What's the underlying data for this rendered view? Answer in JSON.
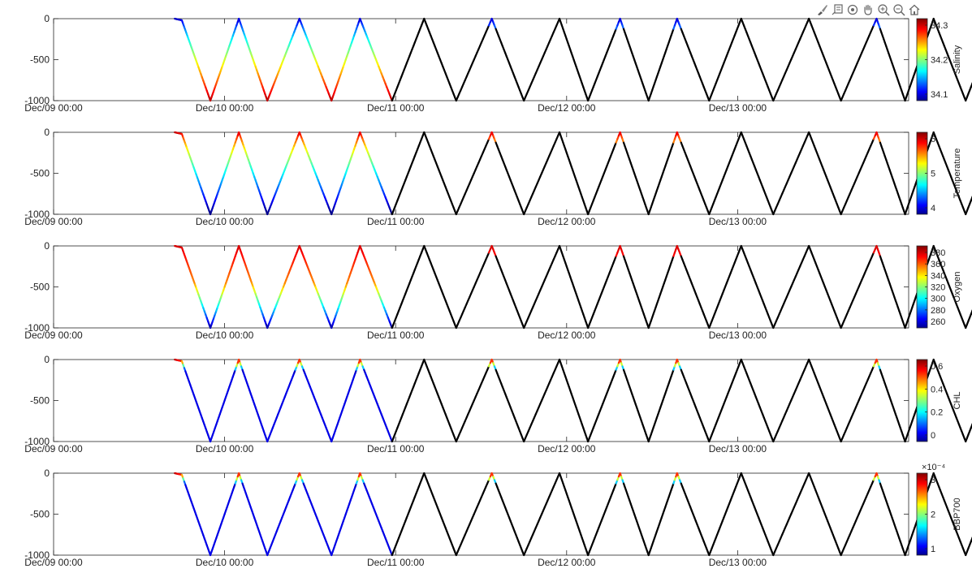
{
  "toolbar": {
    "icons": [
      "brush-icon",
      "data-tips-icon",
      "rotate-icon",
      "pan-icon",
      "zoom-in-icon",
      "zoom-out-icon",
      "home-icon"
    ]
  },
  "chart_data": [
    {
      "type": "line",
      "title": "",
      "colorbar_label": "Salinity",
      "colorbar_ticks": [
        "34.3",
        "34.2",
        "34.1"
      ],
      "yticks": [
        "0",
        "-500",
        "-1000"
      ],
      "xticks": [
        "Dec/09 00:00",
        "Dec/10 00:00",
        "Dec/11 00:00",
        "Dec/12 00:00",
        "Dec/13 00:00"
      ],
      "ylim": [
        -1000,
        0
      ]
    },
    {
      "type": "line",
      "title": "",
      "colorbar_label": "Temperature",
      "colorbar_ticks": [
        "6",
        "5",
        "4"
      ],
      "yticks": [
        "0",
        "-500",
        "-1000"
      ],
      "xticks": [
        "Dec/09 00:00",
        "Dec/10 00:00",
        "Dec/11 00:00",
        "Dec/12 00:00",
        "Dec/13 00:00"
      ],
      "ylim": [
        -1000,
        0
      ]
    },
    {
      "type": "line",
      "title": "",
      "colorbar_label": "Oxygen",
      "colorbar_ticks": [
        "380",
        "360",
        "340",
        "320",
        "300",
        "280",
        "260"
      ],
      "yticks": [
        "0",
        "-500",
        "-1000"
      ],
      "xticks": [
        "Dec/09 00:00",
        "Dec/10 00:00",
        "Dec/11 00:00",
        "Dec/12 00:00",
        "Dec/13 00:00"
      ],
      "ylim": [
        -1000,
        0
      ]
    },
    {
      "type": "line",
      "title": "",
      "colorbar_label": "CHL",
      "colorbar_ticks": [
        "0.6",
        "0.4",
        "0.2",
        "0"
      ],
      "yticks": [
        "0",
        "-500",
        "-1000"
      ],
      "xticks": [
        "Dec/09 00:00",
        "Dec/10 00:00",
        "Dec/11 00:00",
        "Dec/12 00:00",
        "Dec/13 00:00"
      ],
      "ylim": [
        -1000,
        0
      ]
    },
    {
      "type": "line",
      "title": "",
      "colorbar_label": "BBP700",
      "colorbar_ticks": [
        "3",
        "2",
        "1"
      ],
      "colorbar_exponent": "×10⁻⁴",
      "yticks": [
        "0",
        "-500",
        "-1000"
      ],
      "xticks": [
        "Dec/09 00:00",
        "Dec/10 00:00",
        "Dec/11 00:00",
        "Dec/12 00:00",
        "Dec/13 00:00"
      ],
      "ylim": [
        -1000,
        0
      ]
    }
  ],
  "profile": {
    "x_start": "Dec/09 00:00",
    "x_end": "Dec/14 00:00",
    "vertices": [
      [
        "Dec/09 17:00",
        0
      ],
      [
        "Dec/09 18:00",
        -20
      ],
      [
        "Dec/09 22:00",
        -1000
      ],
      [
        "Dec/10 02:00",
        0
      ],
      [
        "Dec/10 06:00",
        -1000
      ],
      [
        "Dec/10 10:30",
        0
      ],
      [
        "Dec/10 15:00",
        -1000
      ],
      [
        "Dec/10 19:00",
        0
      ],
      [
        "Dec/10 23:30",
        -1000
      ],
      [
        "Dec/11 04:00",
        0
      ],
      [
        "Dec/11 08:30",
        -1000
      ],
      [
        "Dec/11 13:30",
        0
      ],
      [
        "Dec/11 18:00",
        -1000
      ],
      [
        "Dec/11 23:00",
        0
      ],
      [
        "Dec/12 03:00",
        -1000
      ],
      [
        "Dec/12 07:30",
        0
      ],
      [
        "Dec/12 11:30",
        -1000
      ],
      [
        "Dec/12 15:30",
        0
      ],
      [
        "Dec/12 20:00",
        -1000
      ],
      [
        "Dec/13 00:30",
        0
      ],
      [
        "Dec/13 05:00",
        -1000
      ],
      [
        "Dec/13 10:00",
        0
      ],
      [
        "Dec/13 14:30",
        -1000
      ],
      [
        "Dec/13 19:30",
        0
      ],
      [
        "Dec/13 23:30",
        -1000
      ],
      [
        "Dec/14 03:30",
        0
      ],
      [
        "Dec/14 08:00",
        -1000
      ],
      [
        "Dec/14 12:30",
        0
      ],
      [
        "Dec/14 16:00",
        -1000
      ],
      [
        "Dec/14 20:00",
        0
      ]
    ]
  }
}
